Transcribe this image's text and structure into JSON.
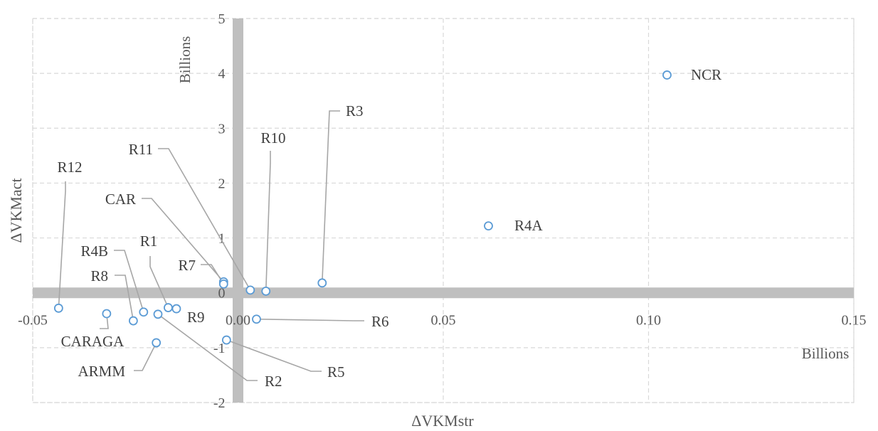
{
  "chart_data": {
    "type": "scatter",
    "title": "",
    "xlabel": "ΔVKMstr",
    "ylabel": "ΔVKMact",
    "x_unit_label": "Billions",
    "y_unit_label": "Billions",
    "xlim": [
      -0.05,
      0.15
    ],
    "ylim": [
      -2,
      5
    ],
    "x_ticks": [
      -0.05,
      0.0,
      0.05,
      0.1,
      0.15
    ],
    "x_tick_labels": [
      "-0.05",
      "0.00",
      "0.05",
      "0.10",
      "0.15"
    ],
    "y_ticks": [
      -2,
      -1,
      0,
      1,
      2,
      3,
      4,
      5
    ],
    "y_tick_labels": [
      "-2",
      "-1",
      "0",
      "1",
      "2",
      "3",
      "4",
      "5"
    ],
    "grid": true,
    "legend": "none",
    "colors": {
      "marker": "#5b9bd5",
      "grid": "#d9d9d9",
      "zero_axis": "#bfbfbf",
      "leader": "#a6a6a6",
      "text": "#404040"
    },
    "points": [
      {
        "label": "NCR",
        "x": 0.1045,
        "y": 3.97
      },
      {
        "label": "R4A",
        "x": 0.061,
        "y": 1.22
      },
      {
        "label": "R3",
        "x": 0.0205,
        "y": 0.18
      },
      {
        "label": "R10",
        "x": 0.0068,
        "y": 0.03
      },
      {
        "label": "R11",
        "x": 0.003,
        "y": 0.05
      },
      {
        "label": "CAR",
        "x": -0.0035,
        "y": 0.2
      },
      {
        "label": "R7",
        "x": -0.0035,
        "y": 0.16
      },
      {
        "label": "R6",
        "x": 0.0045,
        "y": -0.48
      },
      {
        "label": "R5",
        "x": -0.0028,
        "y": -0.86
      },
      {
        "label": "R12",
        "x": -0.0437,
        "y": -0.28
      },
      {
        "label": "R1",
        "x": -0.017,
        "y": -0.27
      },
      {
        "label": "R9",
        "x": -0.015,
        "y": -0.29
      },
      {
        "label": "R4B",
        "x": -0.023,
        "y": -0.35
      },
      {
        "label": "R2",
        "x": -0.0195,
        "y": -0.39
      },
      {
        "label": "R8",
        "x": -0.0255,
        "y": -0.51
      },
      {
        "label": "CARAGA",
        "x": -0.032,
        "y": -0.38
      },
      {
        "label": "ARMM",
        "x": -0.0199,
        "y": -0.91
      }
    ]
  }
}
